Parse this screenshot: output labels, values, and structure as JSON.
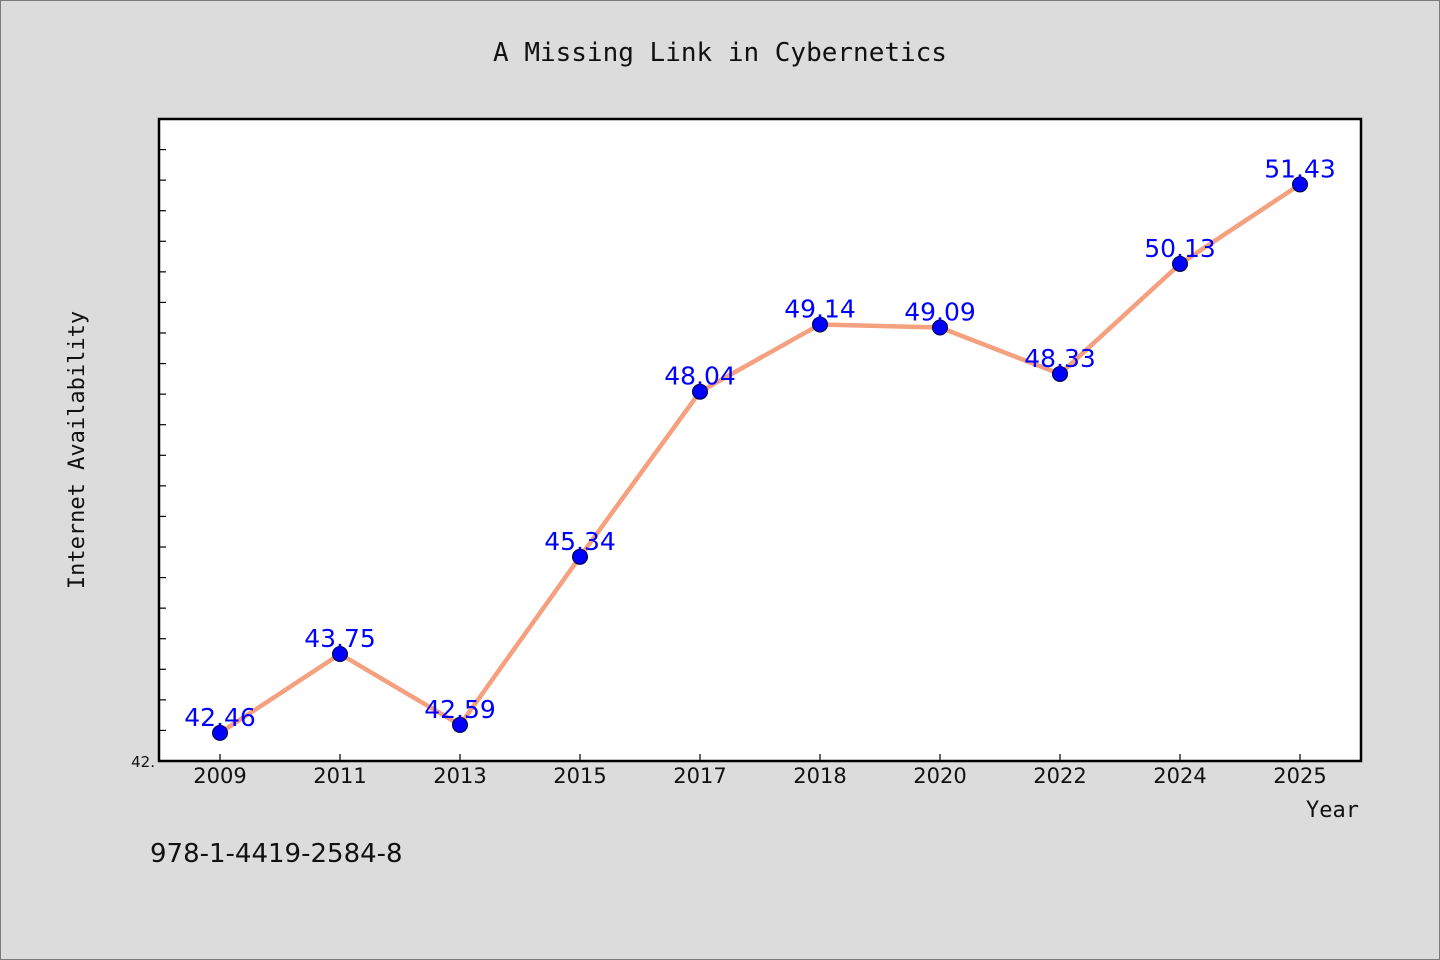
{
  "chart_data": {
    "type": "line",
    "title": "A Missing Link in Cybernetics",
    "xlabel": "Year",
    "ylabel": "Internet Availability",
    "categories": [
      "2009",
      "2011",
      "2013",
      "2015",
      "2017",
      "2018",
      "2020",
      "2022",
      "2024",
      "2025"
    ],
    "series": [
      {
        "values": [
          42.46,
          43.75,
          42.59,
          45.34,
          48.04,
          49.14,
          49.09,
          48.33,
          50.13,
          51.43
        ],
        "labels": [
          "42.46",
          "43.75",
          "42.59",
          "45.34",
          "48.04",
          "49.14",
          "49.09",
          "48.33",
          "50.13",
          "51.43"
        ]
      }
    ],
    "ylim": [
      42.0,
      52.5
    ],
    "y_tick_labels": [
      {
        "value": 42.0,
        "label": "42."
      }
    ],
    "grid": false,
    "legend": "none",
    "colors": {
      "line": "#f5a07e",
      "marker": "#0000ff",
      "data_label": "#0000ff",
      "plot_bg": "#ffffff",
      "page_bg": "#dcdcdc"
    }
  },
  "footer": {
    "isbn": "978-1-4419-2584-8"
  }
}
